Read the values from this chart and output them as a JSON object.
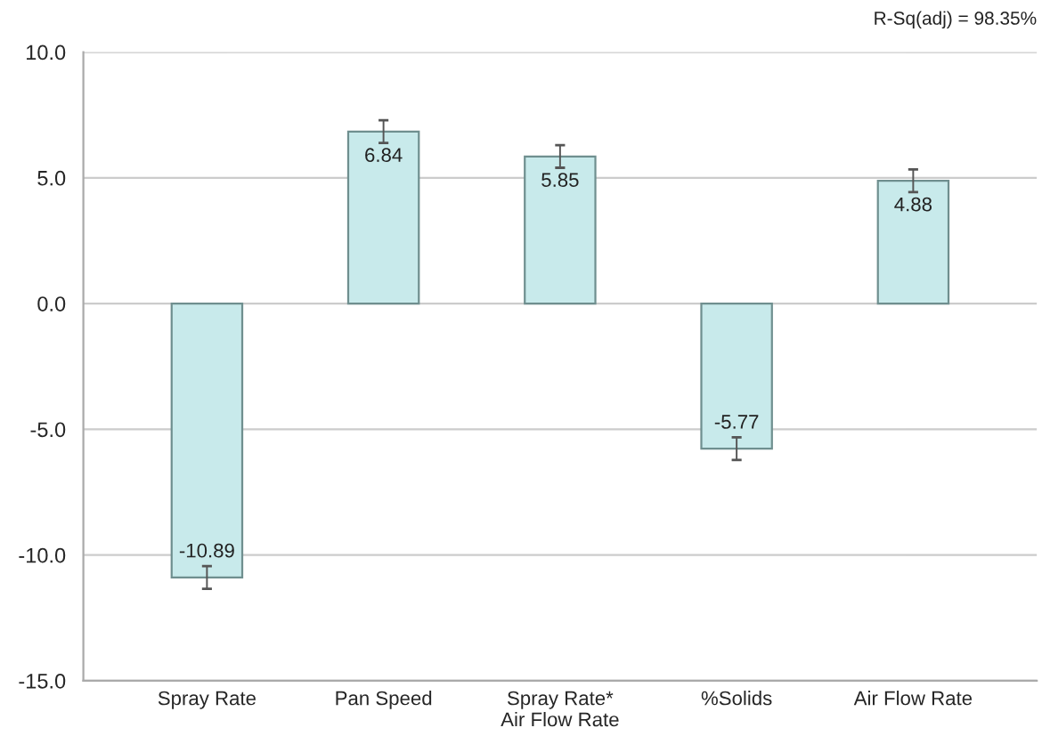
{
  "chart_data": {
    "type": "bar",
    "categories": [
      "Spray Rate",
      "Pan Speed",
      "Spray Rate*\nAir Flow Rate",
      "%Solids",
      "Air Flow Rate"
    ],
    "values": [
      -10.89,
      6.84,
      5.85,
      -5.77,
      4.88
    ],
    "errors": [
      0.45,
      0.45,
      0.45,
      0.45,
      0.45
    ],
    "color": "#c8eaeb",
    "data_labels": true,
    "ylim": [
      -15,
      10
    ],
    "yticks": [
      {
        "value": -15,
        "label": "-15.0"
      },
      {
        "value": -10,
        "label": "-10.0"
      },
      {
        "value": -5,
        "label": "-5.0"
      },
      {
        "value": 0,
        "label": "0.0"
      },
      {
        "value": 5,
        "label": "5.0"
      },
      {
        "value": 10,
        "label": "10.0"
      }
    ],
    "grid": "y",
    "annotations": [
      "R-Sq(adj) = 98.35%"
    ]
  }
}
